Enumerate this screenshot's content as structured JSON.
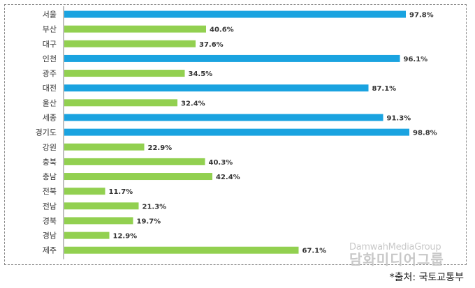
{
  "chart_data": {
    "type": "bar",
    "orientation": "horizontal",
    "categories": [
      "서울",
      "부산",
      "대구",
      "인천",
      "광주",
      "대전",
      "울산",
      "세종",
      "경기도",
      "강원",
      "충북",
      "충남",
      "전북",
      "전남",
      "경북",
      "경남",
      "제주"
    ],
    "values": [
      97.8,
      40.6,
      37.6,
      96.1,
      34.5,
      87.1,
      32.4,
      91.3,
      98.8,
      22.9,
      40.3,
      42.4,
      11.7,
      21.3,
      19.7,
      12.9,
      67.1
    ],
    "value_labels": [
      "97.8%",
      "40.6%",
      "37.6%",
      "96.1%",
      "34.5%",
      "87.1%",
      "32.4%",
      "91.3%",
      "98.8%",
      "22.9%",
      "40.3%",
      "42.4%",
      "11.7%",
      "21.3%",
      "19.7%",
      "12.9%",
      "67.1%"
    ],
    "highlighted": [
      "서울",
      "인천",
      "대전",
      "세종",
      "경기도"
    ],
    "xlim": [
      0,
      100
    ],
    "grid": false,
    "legend": "none",
    "colors": {
      "highlight": "#1aa3e0",
      "default": "#92d050",
      "axis": "#7f7f7f"
    }
  },
  "watermark": {
    "en": "DamwahMediaGroup",
    "ko": "담화미디어그룹"
  },
  "source": "*출처: 국토교통부"
}
